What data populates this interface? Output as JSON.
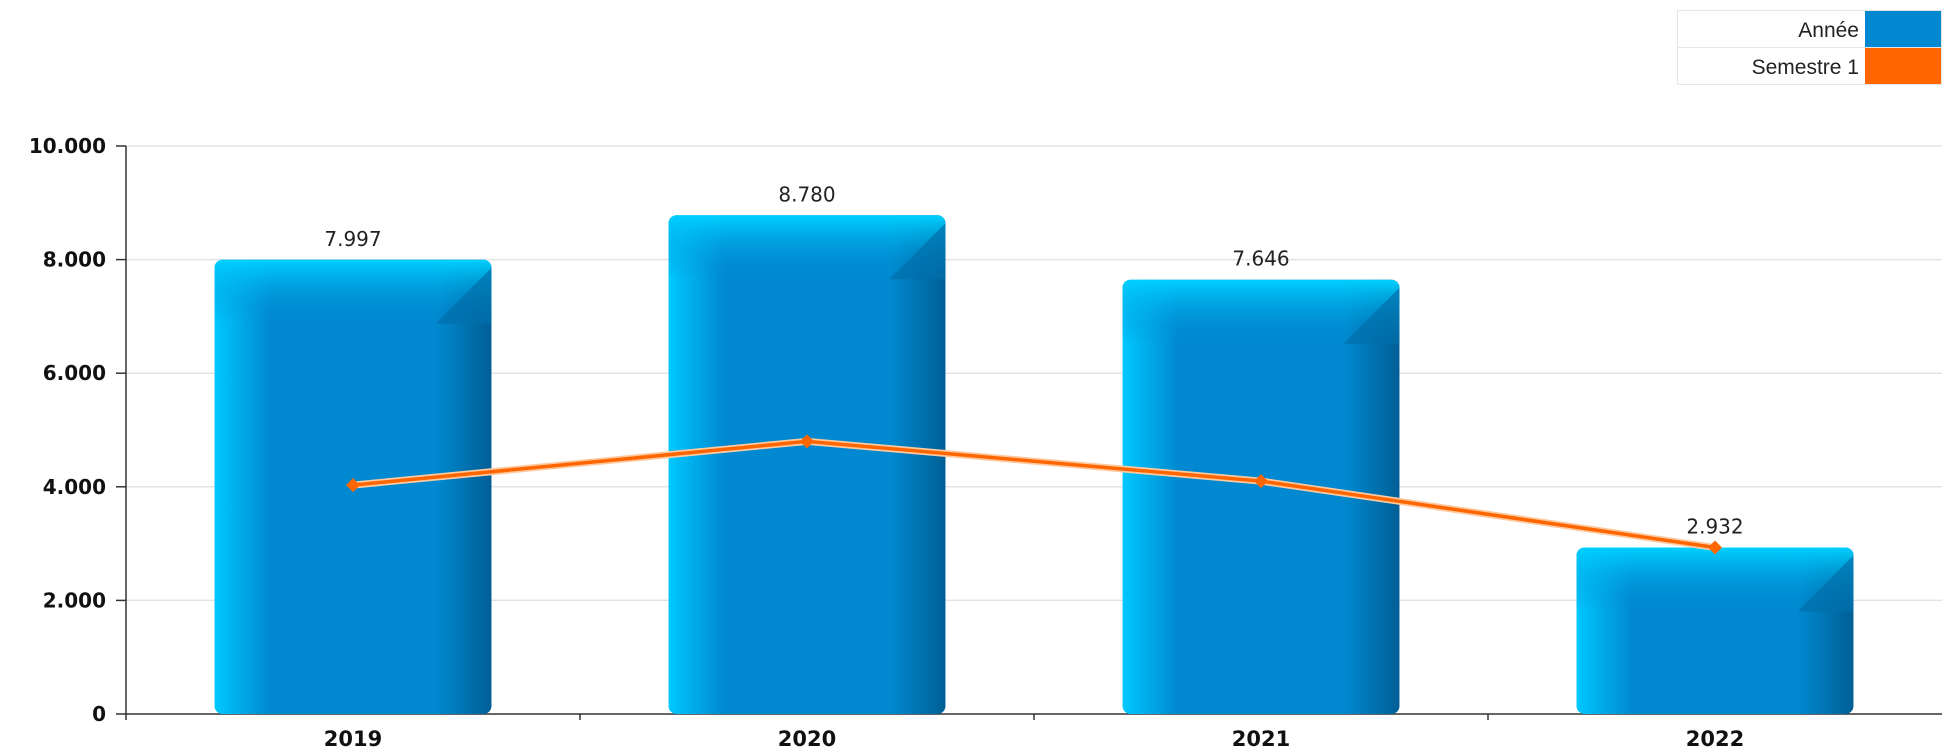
{
  "legend": {
    "placement": "top-right",
    "items": [
      {
        "label": "Année",
        "color": "#0089d0"
      },
      {
        "label": "Semestre 1",
        "color": "#ff6600"
      }
    ]
  },
  "chart_data": {
    "type": "bar",
    "title": "",
    "xlabel": "",
    "ylabel": "",
    "categories": [
      "2019",
      "2020",
      "2021",
      "2022"
    ],
    "ylim": [
      0,
      10000
    ],
    "yticks": [
      0,
      2000,
      4000,
      6000,
      8000,
      10000
    ],
    "ytick_labels": [
      "0",
      "2.000",
      "4.000",
      "6.000",
      "8.000",
      "10.000"
    ],
    "grid": true,
    "series": [
      {
        "name": "Année",
        "type": "bar",
        "color": "#0089d0",
        "values": [
          7997,
          8780,
          7646,
          2932
        ],
        "labels": [
          "7.997",
          "8.780",
          "7.646",
          "2.932"
        ]
      },
      {
        "name": "Semestre 1",
        "type": "line",
        "color": "#ff6600",
        "values": [
          4030,
          4800,
          4100,
          2932
        ]
      }
    ]
  }
}
